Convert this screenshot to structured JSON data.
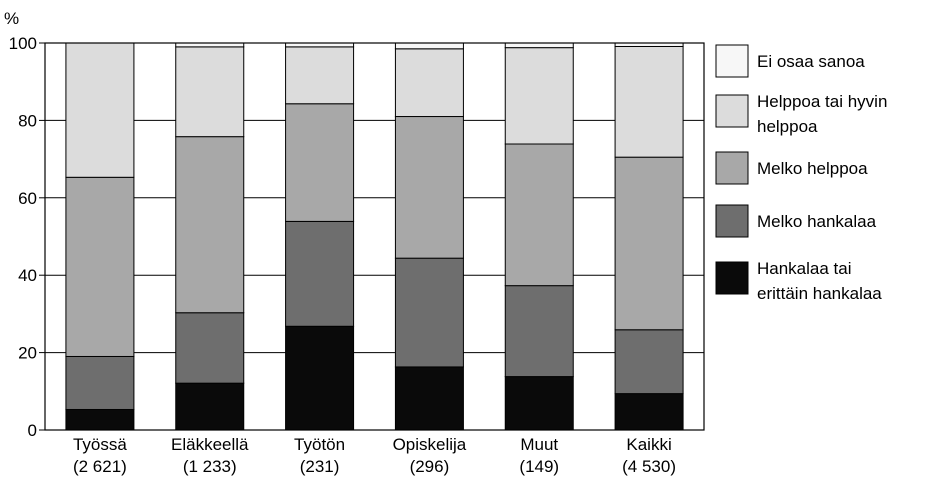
{
  "chart_data": {
    "type": "bar",
    "stacked": true,
    "ylabel": "%",
    "ylim": [
      0,
      100
    ],
    "yticks": [
      0,
      20,
      40,
      60,
      80,
      100
    ],
    "grid": true,
    "legend_position": "right",
    "categories": [
      [
        "Työssä",
        "(2 621)"
      ],
      [
        "Eläkkeellä",
        "(1 233)"
      ],
      [
        "Työtön",
        "(231)"
      ],
      [
        "Opiskelija",
        "(296)"
      ],
      [
        "Muut",
        "(149)"
      ],
      [
        "Kaikki",
        "(4 530)"
      ]
    ],
    "series": [
      {
        "name": [
          "Hankalaa tai",
          "erittäin hankalaa"
        ],
        "color": "#0a0a0a",
        "values": [
          5.3,
          12.1,
          26.8,
          16.3,
          13.8,
          9.4
        ]
      },
      {
        "name": [
          "Melko hankalaa"
        ],
        "color": "#6e6e6e",
        "values": [
          13.7,
          18.2,
          27.1,
          28.1,
          23.5,
          16.5
        ]
      },
      {
        "name": [
          "Melko helppoa"
        ],
        "color": "#a8a8a8",
        "values": [
          46.3,
          45.5,
          30.4,
          36.6,
          36.6,
          44.6
        ]
      },
      {
        "name": [
          "Helppoa tai hyvin",
          "helppoa"
        ],
        "color": "#dcdcdc",
        "values": [
          34.7,
          23.2,
          14.7,
          17.5,
          24.9,
          28.6
        ]
      },
      {
        "name": [
          "Ei osaa sanoa"
        ],
        "color": "#f7f7f7",
        "values": [
          0.0,
          1.0,
          1.0,
          1.5,
          1.2,
          0.9
        ]
      }
    ]
  }
}
